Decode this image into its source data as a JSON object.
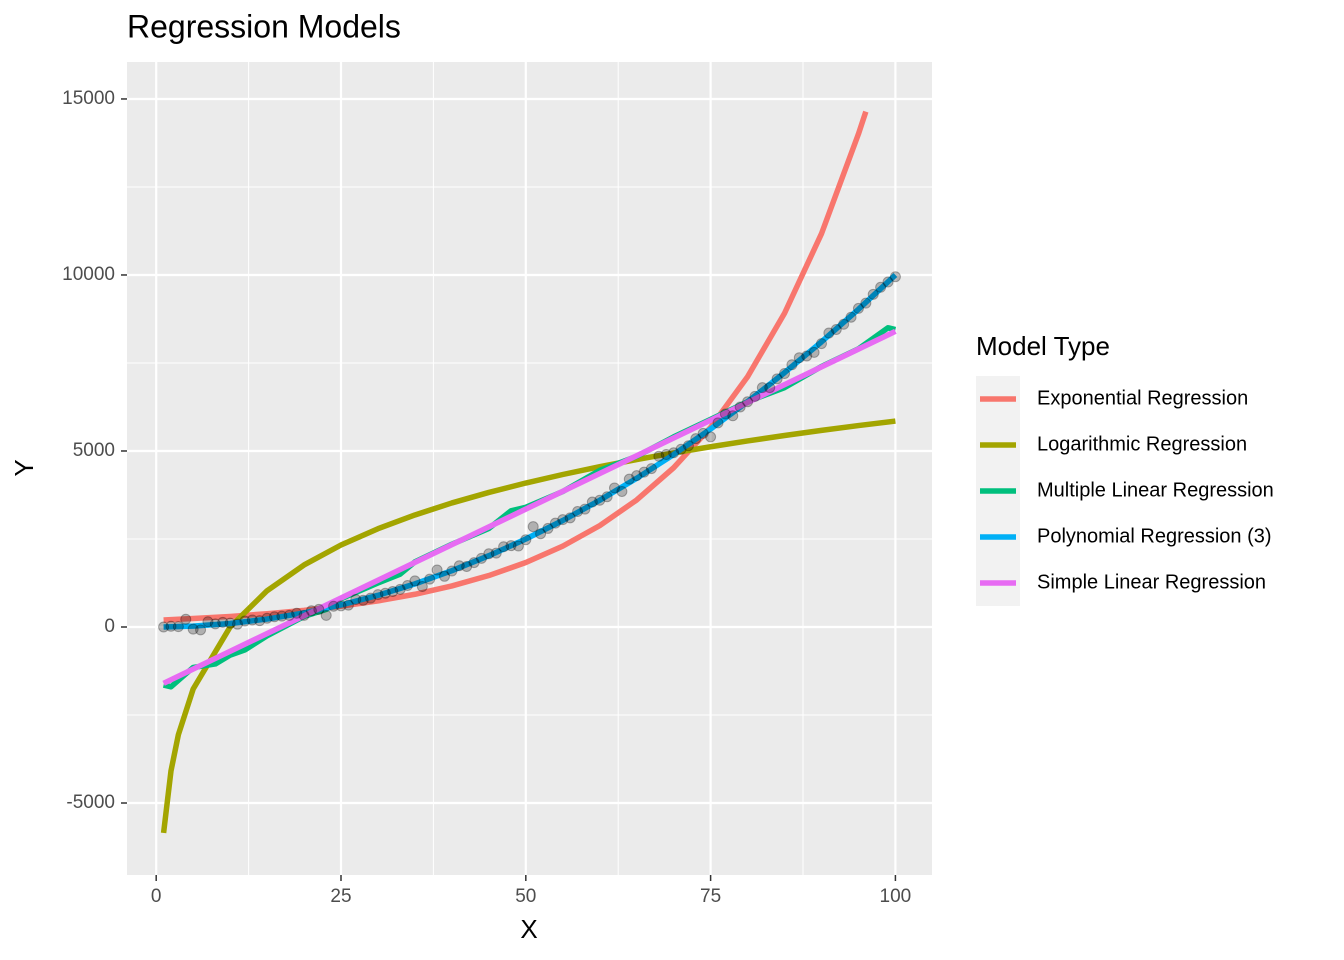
{
  "chart_data": {
    "type": "line",
    "title": "Regression Models",
    "x_label": "X",
    "y_label": "Y",
    "legend_title": "Model Type",
    "legend": "right",
    "grid": true,
    "xlim": [
      -3.95,
      104.95
    ],
    "xticks": [
      0,
      25,
      50,
      75,
      100
    ],
    "ylim": [
      -7045,
      16050
    ],
    "yticks": [
      -5000,
      0,
      5000,
      10000,
      15000
    ],
    "series": [
      {
        "name": "Exponential Regression",
        "color": "#F8766D",
        "x": [
          1,
          5,
          10,
          15,
          20,
          25,
          30,
          35,
          40,
          45,
          50,
          55,
          60,
          65,
          70,
          75,
          80,
          85,
          90,
          95,
          96
        ],
        "values": [
          200,
          240,
          300,
          377,
          472,
          592,
          742,
          930,
          1166,
          1462,
          1832,
          2297,
          2879,
          3609,
          4524,
          5671,
          7110,
          8912,
          11172,
          14006,
          14640
        ]
      },
      {
        "name": "Logarithmic Regression",
        "color": "#A3A500",
        "x": [
          1,
          2,
          3,
          5,
          10,
          15,
          20,
          25,
          30,
          35,
          40,
          45,
          50,
          55,
          60,
          65,
          70,
          75,
          80,
          85,
          90,
          95,
          100
        ],
        "values": [
          -5850,
          -4089,
          -3059,
          -1761,
          0,
          1031,
          1762,
          2329,
          2792,
          3183,
          3524,
          3823,
          4090,
          4332,
          4553,
          4756,
          4944,
          5120,
          5285,
          5440,
          5585,
          5722,
          5850
        ]
      },
      {
        "name": "Multiple Linear Regression",
        "color": "#00BF7D",
        "x": [
          1,
          2,
          5,
          8,
          10,
          12,
          15,
          20,
          23,
          25,
          30,
          33,
          35,
          40,
          45,
          48,
          50,
          55,
          60,
          65,
          70,
          75,
          80,
          85,
          90,
          95,
          99,
          100
        ],
        "values": [
          -1650,
          -1700,
          -1150,
          -1050,
          -800,
          -650,
          -250,
          300,
          500,
          800,
          1250,
          1500,
          1850,
          2350,
          2800,
          3300,
          3400,
          3850,
          4450,
          4850,
          5400,
          5900,
          6400,
          6800,
          7400,
          7900,
          8500,
          8450
        ]
      },
      {
        "name": "Polynomial Regression (3)",
        "color": "#00B0F6",
        "x": [
          1,
          5,
          10,
          15,
          20,
          25,
          30,
          35,
          40,
          45,
          50,
          55,
          60,
          65,
          70,
          75,
          80,
          85,
          90,
          95,
          100
        ],
        "values": [
          1,
          25,
          100,
          225,
          400,
          625,
          900,
          1225,
          1600,
          2025,
          2500,
          3025,
          3600,
          4225,
          4900,
          5625,
          6400,
          7225,
          8100,
          9025,
          10000
        ]
      },
      {
        "name": "Simple Linear Regression",
        "color": "#E76BF3",
        "x": [
          1,
          100
        ],
        "values": [
          -1600,
          8399
        ]
      }
    ],
    "points": {
      "color": "#000000",
      "x": [
        1,
        2,
        3,
        4,
        5,
        6,
        7,
        8,
        9,
        10,
        11,
        12,
        13,
        14,
        15,
        16,
        17,
        18,
        19,
        20,
        21,
        22,
        23,
        24,
        25,
        26,
        27,
        28,
        29,
        30,
        31,
        32,
        33,
        34,
        35,
        36,
        37,
        38,
        39,
        40,
        41,
        42,
        43,
        44,
        45,
        46,
        47,
        48,
        49,
        50,
        51,
        52,
        53,
        54,
        55,
        56,
        57,
        58,
        59,
        60,
        61,
        62,
        63,
        64,
        65,
        66,
        67,
        68,
        69,
        70,
        71,
        72,
        73,
        74,
        75,
        76,
        77,
        78,
        79,
        80,
        81,
        82,
        83,
        84,
        85,
        86,
        87,
        88,
        89,
        90,
        91,
        92,
        93,
        94,
        95,
        96,
        97,
        98,
        99,
        100
      ],
      "values": [
        0,
        20,
        10,
        220,
        -60,
        -80,
        150,
        90,
        130,
        110,
        80,
        170,
        200,
        180,
        250,
        290,
        310,
        330,
        390,
        330,
        460,
        500,
        330,
        590,
        600,
        620,
        780,
        760,
        820,
        920,
        960,
        1010,
        1070,
        1180,
        1310,
        1150,
        1360,
        1620,
        1440,
        1590,
        1740,
        1720,
        1830,
        1950,
        2080,
        2100,
        2280,
        2310,
        2300,
        2480,
        2850,
        2650,
        2800,
        2950,
        3050,
        3100,
        3280,
        3350,
        3550,
        3600,
        3700,
        3950,
        3850,
        4200,
        4300,
        4400,
        4500,
        4850,
        4900,
        4950,
        5050,
        5150,
        5350,
        5500,
        5400,
        5800,
        6050,
        6000,
        6250,
        6400,
        6550,
        6800,
        6800,
        7050,
        7200,
        7450,
        7650,
        7700,
        7800,
        8050,
        8350,
        8450,
        8600,
        8800,
        9050,
        9200,
        9450,
        9650,
        9800,
        9950
      ]
    }
  }
}
